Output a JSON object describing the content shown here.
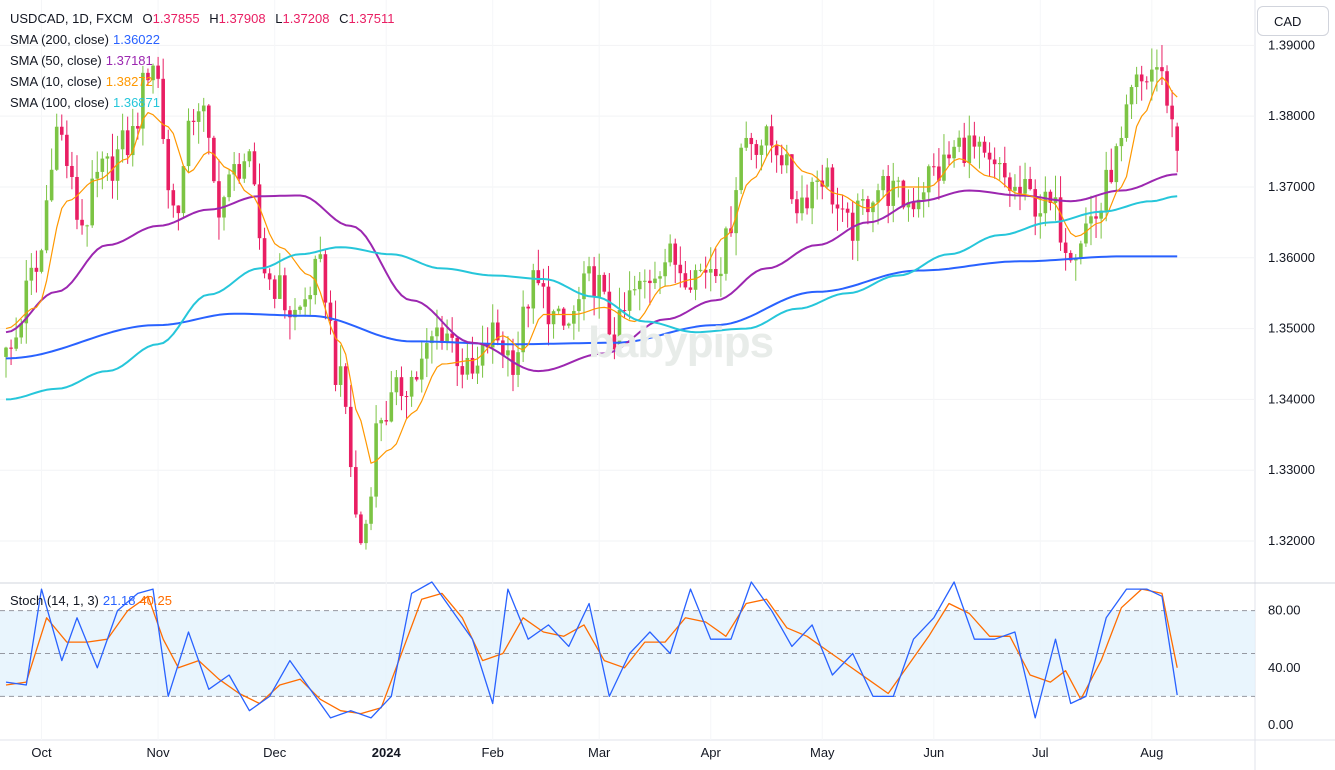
{
  "chart_data": {
    "type": "candlestick",
    "symbol": "USDCAD",
    "timeframe": "1D",
    "source": "FXCM",
    "currency": "CAD",
    "watermark": "babypips",
    "ohlc": {
      "o_label": "O",
      "o": "1.37855",
      "h_label": "H",
      "h": "1.37908",
      "l_label": "L",
      "l": "1.37208",
      "c_label": "C",
      "c": "1.37511"
    },
    "up_color": "#7cc444",
    "down_color": "#e91e63",
    "y_axis": {
      "min": 1.3145,
      "max": 1.3957,
      "ticks": [
        "1.39000",
        "1.38000",
        "1.37000",
        "1.36000",
        "1.35000",
        "1.34000",
        "1.33000",
        "1.32000"
      ]
    },
    "x_labels": [
      "Oct",
      "Nov",
      "Dec",
      "2024",
      "Feb",
      "Mar",
      "Apr",
      "May",
      "Jun",
      "Jul",
      "Aug"
    ],
    "x_label_index": [
      7,
      30,
      53,
      75,
      96,
      117,
      139,
      161,
      183,
      204,
      226
    ],
    "num_bars": 232,
    "anchors": [
      [
        0,
        1.346
      ],
      [
        6,
        1.358
      ],
      [
        10,
        1.378
      ],
      [
        15,
        1.365
      ],
      [
        19,
        1.372
      ],
      [
        24,
        1.376
      ],
      [
        29,
        1.388
      ],
      [
        33,
        1.367
      ],
      [
        38,
        1.382
      ],
      [
        42,
        1.368
      ],
      [
        47,
        1.374
      ],
      [
        52,
        1.357
      ],
      [
        57,
        1.352
      ],
      [
        62,
        1.358
      ],
      [
        66,
        1.342
      ],
      [
        70,
        1.32
      ],
      [
        74,
        1.338
      ],
      [
        80,
        1.343
      ],
      [
        86,
        1.35
      ],
      [
        92,
        1.343
      ],
      [
        96,
        1.349
      ],
      [
        100,
        1.346
      ],
      [
        104,
        1.356
      ],
      [
        110,
        1.35
      ],
      [
        116,
        1.357
      ],
      [
        120,
        1.349
      ],
      [
        124,
        1.355
      ],
      [
        130,
        1.36
      ],
      [
        136,
        1.358
      ],
      [
        141,
        1.36
      ],
      [
        146,
        1.377
      ],
      [
        152,
        1.376
      ],
      [
        156,
        1.368
      ],
      [
        161,
        1.372
      ],
      [
        166,
        1.364
      ],
      [
        172,
        1.37
      ],
      [
        178,
        1.368
      ],
      [
        183,
        1.372
      ],
      [
        189,
        1.376
      ],
      [
        195,
        1.372
      ],
      [
        200,
        1.369
      ],
      [
        206,
        1.367
      ],
      [
        210,
        1.362
      ],
      [
        215,
        1.366
      ],
      [
        219,
        1.374
      ],
      [
        223,
        1.384
      ],
      [
        227,
        1.387
      ],
      [
        229,
        1.383
      ],
      [
        231,
        1.3751
      ]
    ],
    "indicators": [
      {
        "label": "SMA (200, close)",
        "value": "1.36022",
        "color": "#2962ff",
        "points": [
          [
            0,
            1.3458
          ],
          [
            30,
            1.3505
          ],
          [
            45,
            1.3521
          ],
          [
            60,
            1.3518
          ],
          [
            80,
            1.3482
          ],
          [
            100,
            1.3478
          ],
          [
            120,
            1.348
          ],
          [
            140,
            1.3505
          ],
          [
            160,
            1.3552
          ],
          [
            180,
            1.3582
          ],
          [
            200,
            1.3595
          ],
          [
            220,
            1.3602
          ],
          [
            231,
            1.3602
          ]
        ]
      },
      {
        "label": "SMA (50, close)",
        "value": "1.37181",
        "color": "#9c27b0",
        "points": [
          [
            0,
            1.3495
          ],
          [
            10,
            1.3552
          ],
          [
            20,
            1.3618
          ],
          [
            30,
            1.3645
          ],
          [
            40,
            1.3668
          ],
          [
            50,
            1.3687
          ],
          [
            58,
            1.3688
          ],
          [
            68,
            1.3645
          ],
          [
            80,
            1.354
          ],
          [
            92,
            1.348
          ],
          [
            105,
            1.344
          ],
          [
            118,
            1.3465
          ],
          [
            130,
            1.3513
          ],
          [
            140,
            1.354
          ],
          [
            150,
            1.3585
          ],
          [
            160,
            1.3618
          ],
          [
            170,
            1.365
          ],
          [
            180,
            1.368
          ],
          [
            190,
            1.3695
          ],
          [
            200,
            1.3688
          ],
          [
            210,
            1.368
          ],
          [
            220,
            1.3695
          ],
          [
            231,
            1.3718
          ]
        ]
      },
      {
        "label": "SMA (10, close)",
        "value": "1.38272",
        "color": "#ff9800",
        "points": [
          [
            0,
            1.35
          ],
          [
            6,
            1.353
          ],
          [
            12,
            1.368
          ],
          [
            18,
            1.371
          ],
          [
            24,
            1.374
          ],
          [
            28,
            1.3805
          ],
          [
            32,
            1.3785
          ],
          [
            36,
            1.372
          ],
          [
            40,
            1.375
          ],
          [
            44,
            1.3725
          ],
          [
            48,
            1.369
          ],
          [
            54,
            1.3615
          ],
          [
            60,
            1.3575
          ],
          [
            66,
            1.348
          ],
          [
            70,
            1.337
          ],
          [
            72,
            1.331
          ],
          [
            76,
            1.333
          ],
          [
            80,
            1.338
          ],
          [
            86,
            1.345
          ],
          [
            92,
            1.3455
          ],
          [
            98,
            1.349
          ],
          [
            102,
            1.347
          ],
          [
            106,
            1.352
          ],
          [
            112,
            1.352
          ],
          [
            118,
            1.353
          ],
          [
            124,
            1.351
          ],
          [
            130,
            1.356
          ],
          [
            136,
            1.357
          ],
          [
            142,
            1.363
          ],
          [
            147,
            1.371
          ],
          [
            152,
            1.376
          ],
          [
            158,
            1.372
          ],
          [
            164,
            1.369
          ],
          [
            170,
            1.367
          ],
          [
            176,
            1.37
          ],
          [
            182,
            1.37
          ],
          [
            188,
            1.374
          ],
          [
            194,
            1.3715
          ],
          [
            200,
            1.369
          ],
          [
            206,
            1.368
          ],
          [
            211,
            1.363
          ],
          [
            216,
            1.365
          ],
          [
            220,
            1.37
          ],
          [
            224,
            1.38
          ],
          [
            228,
            1.3855
          ],
          [
            231,
            1.3827
          ]
        ]
      },
      {
        "label": "SMA (100, close)",
        "value": "1.36871",
        "color": "#26c6da",
        "points": [
          [
            0,
            1.34
          ],
          [
            10,
            1.3415
          ],
          [
            20,
            1.344
          ],
          [
            30,
            1.3478
          ],
          [
            40,
            1.3548
          ],
          [
            50,
            1.3585
          ],
          [
            58,
            1.3605
          ],
          [
            66,
            1.3615
          ],
          [
            76,
            1.3605
          ],
          [
            86,
            1.3585
          ],
          [
            96,
            1.3575
          ],
          [
            106,
            1.357
          ],
          [
            116,
            1.3545
          ],
          [
            126,
            1.351
          ],
          [
            136,
            1.3495
          ],
          [
            146,
            1.35
          ],
          [
            156,
            1.3528
          ],
          [
            166,
            1.355
          ],
          [
            176,
            1.3575
          ],
          [
            186,
            1.3605
          ],
          [
            196,
            1.3632
          ],
          [
            206,
            1.365
          ],
          [
            216,
            1.3665
          ],
          [
            226,
            1.368
          ],
          [
            231,
            1.3687
          ]
        ]
      }
    ],
    "stoch": {
      "label": "Stoch (14, 1, 3)",
      "k_value": "21.18",
      "d_value": "40.25",
      "k_color": "#2962ff",
      "d_color": "#ff6d00",
      "levels": [
        80,
        20
      ],
      "middle": 50,
      "ticks": [
        "80.00",
        "40.00",
        "0.00"
      ],
      "k_points": [
        [
          0,
          30
        ],
        [
          4,
          28
        ],
        [
          7,
          95
        ],
        [
          11,
          45
        ],
        [
          14,
          75
        ],
        [
          18,
          40
        ],
        [
          22,
          80
        ],
        [
          26,
          92
        ],
        [
          29,
          95
        ],
        [
          32,
          20
        ],
        [
          36,
          65
        ],
        [
          40,
          25
        ],
        [
          44,
          35
        ],
        [
          48,
          10
        ],
        [
          52,
          20
        ],
        [
          56,
          45
        ],
        [
          60,
          25
        ],
        [
          64,
          5
        ],
        [
          68,
          10
        ],
        [
          72,
          5
        ],
        [
          76,
          20
        ],
        [
          80,
          92
        ],
        [
          84,
          100
        ],
        [
          88,
          80
        ],
        [
          92,
          60
        ],
        [
          96,
          15
        ],
        [
          99,
          95
        ],
        [
          103,
          60
        ],
        [
          107,
          70
        ],
        [
          111,
          55
        ],
        [
          115,
          85
        ],
        [
          119,
          20
        ],
        [
          123,
          50
        ],
        [
          127,
          65
        ],
        [
          131,
          50
        ],
        [
          135,
          95
        ],
        [
          139,
          60
        ],
        [
          143,
          60
        ],
        [
          147,
          100
        ],
        [
          151,
          80
        ],
        [
          155,
          55
        ],
        [
          159,
          70
        ],
        [
          163,
          35
        ],
        [
          167,
          50
        ],
        [
          171,
          20
        ],
        [
          175,
          20
        ],
        [
          179,
          60
        ],
        [
          183,
          75
        ],
        [
          187,
          100
        ],
        [
          191,
          60
        ],
        [
          195,
          60
        ],
        [
          199,
          65
        ],
        [
          203,
          5
        ],
        [
          207,
          60
        ],
        [
          210,
          15
        ],
        [
          213,
          20
        ],
        [
          217,
          75
        ],
        [
          221,
          95
        ],
        [
          225,
          95
        ],
        [
          228,
          90
        ],
        [
          231,
          21
        ]
      ],
      "d_points": [
        [
          0,
          28
        ],
        [
          4,
          30
        ],
        [
          8,
          75
        ],
        [
          12,
          58
        ],
        [
          16,
          58
        ],
        [
          20,
          60
        ],
        [
          24,
          80
        ],
        [
          28,
          90
        ],
        [
          31,
          60
        ],
        [
          34,
          40
        ],
        [
          38,
          45
        ],
        [
          42,
          32
        ],
        [
          46,
          22
        ],
        [
          50,
          15
        ],
        [
          54,
          28
        ],
        [
          58,
          32
        ],
        [
          62,
          18
        ],
        [
          66,
          10
        ],
        [
          70,
          8
        ],
        [
          74,
          12
        ],
        [
          78,
          50
        ],
        [
          82,
          88
        ],
        [
          86,
          92
        ],
        [
          90,
          75
        ],
        [
          94,
          45
        ],
        [
          98,
          50
        ],
        [
          102,
          75
        ],
        [
          106,
          65
        ],
        [
          110,
          62
        ],
        [
          114,
          70
        ],
        [
          118,
          45
        ],
        [
          122,
          40
        ],
        [
          126,
          58
        ],
        [
          130,
          58
        ],
        [
          134,
          75
        ],
        [
          138,
          72
        ],
        [
          142,
          62
        ],
        [
          146,
          85
        ],
        [
          150,
          88
        ],
        [
          154,
          68
        ],
        [
          158,
          62
        ],
        [
          162,
          52
        ],
        [
          166,
          42
        ],
        [
          170,
          32
        ],
        [
          174,
          22
        ],
        [
          178,
          42
        ],
        [
          182,
          62
        ],
        [
          186,
          85
        ],
        [
          190,
          78
        ],
        [
          194,
          62
        ],
        [
          198,
          62
        ],
        [
          202,
          35
        ],
        [
          206,
          30
        ],
        [
          209,
          38
        ],
        [
          212,
          18
        ],
        [
          216,
          45
        ],
        [
          220,
          82
        ],
        [
          224,
          95
        ],
        [
          228,
          92
        ],
        [
          231,
          40
        ]
      ]
    }
  }
}
